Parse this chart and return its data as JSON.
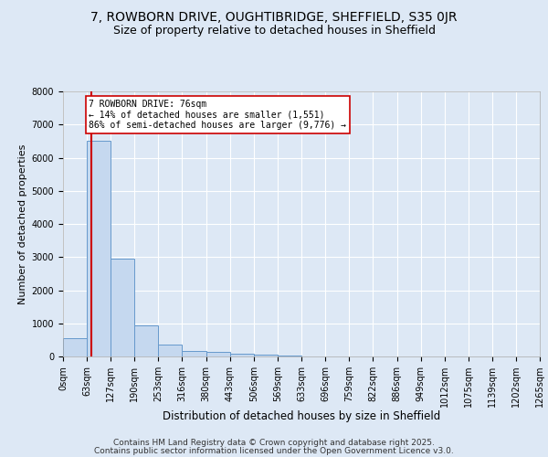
{
  "title1": "7, ROWBORN DRIVE, OUGHTIBRIDGE, SHEFFIELD, S35 0JR",
  "title2": "Size of property relative to detached houses in Sheffield",
  "xlabel": "Distribution of detached houses by size in Sheffield",
  "ylabel": "Number of detached properties",
  "xtick_labels": [
    "0sqm",
    "63sqm",
    "127sqm",
    "190sqm",
    "253sqm",
    "316sqm",
    "380sqm",
    "443sqm",
    "506sqm",
    "569sqm",
    "633sqm",
    "696sqm",
    "759sqm",
    "822sqm",
    "886sqm",
    "949sqm",
    "1012sqm",
    "1075sqm",
    "1139sqm",
    "1202sqm",
    "1265sqm"
  ],
  "bar_left_edges": [
    0,
    63,
    127,
    190,
    253,
    316,
    380,
    443,
    506,
    569,
    633,
    696,
    759,
    822,
    886,
    949,
    1012,
    1075,
    1139,
    1202
  ],
  "bar_widths": [
    63,
    64,
    63,
    63,
    63,
    64,
    63,
    63,
    63,
    64,
    63,
    63,
    63,
    64,
    63,
    63,
    63,
    64,
    63,
    63
  ],
  "bar_heights": [
    550,
    6500,
    2950,
    950,
    350,
    175,
    125,
    75,
    50,
    20,
    10,
    5,
    3,
    2,
    1,
    1,
    0,
    0,
    0,
    0
  ],
  "bar_color": "#c5d8ef",
  "bar_edge_color": "#6699cc",
  "property_sqm": 76,
  "property_line_color": "#cc0000",
  "annotation_text": "7 ROWBORN DRIVE: 76sqm\n← 14% of detached houses are smaller (1,551)\n86% of semi-detached houses are larger (9,776) →",
  "annotation_box_color": "#cc0000",
  "annotation_box_facecolor": "#ffffff",
  "ylim_max": 8000,
  "yticks": [
    0,
    1000,
    2000,
    3000,
    4000,
    5000,
    6000,
    7000,
    8000
  ],
  "xlim_max": 1265,
  "background_color": "#dde8f5",
  "plot_bg_color": "#dde8f5",
  "grid_color": "#ffffff",
  "footnote1": "Contains HM Land Registry data © Crown copyright and database right 2025.",
  "footnote2": "Contains public sector information licensed under the Open Government Licence v3.0.",
  "title1_fontsize": 10,
  "title2_fontsize": 9,
  "xlabel_fontsize": 8.5,
  "ylabel_fontsize": 8,
  "tick_fontsize": 7,
  "annotation_fontsize": 7,
  "footnote_fontsize": 6.5
}
